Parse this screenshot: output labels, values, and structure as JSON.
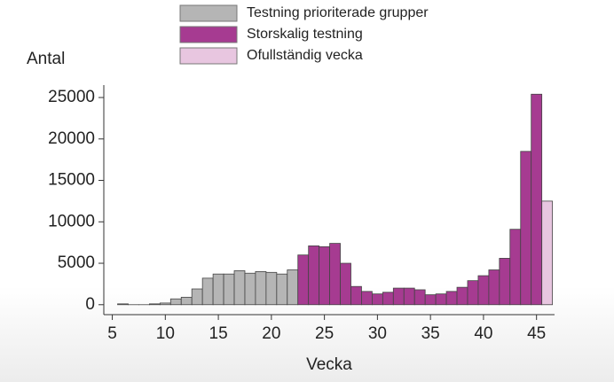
{
  "chart_data": {
    "type": "bar",
    "ylabel": "Antal",
    "xlabel": "Vecka",
    "series": [
      {
        "name": "Testning prioriterade grupper",
        "color": "#b5b5b5",
        "x": [
          6,
          7,
          8,
          9,
          10,
          11,
          12,
          13,
          14,
          15,
          16,
          17,
          18,
          19,
          20,
          21,
          22
        ],
        "values": [
          100,
          0,
          0,
          100,
          200,
          700,
          900,
          1900,
          3200,
          3700,
          3700,
          4100,
          3800,
          4000,
          3900,
          3700,
          4200
        ]
      },
      {
        "name": "Storskalig testning",
        "color": "#a63b91",
        "x": [
          23,
          24,
          25,
          26,
          27,
          28,
          29,
          30,
          31,
          32,
          33,
          34,
          35,
          36,
          37,
          38,
          39,
          40,
          41,
          42,
          43,
          44,
          45
        ],
        "values": [
          6000,
          7100,
          7000,
          7400,
          5000,
          2200,
          1600,
          1300,
          1500,
          2000,
          2000,
          1800,
          1200,
          1300,
          1600,
          2100,
          2900,
          3500,
          4200,
          5600,
          9100,
          18500,
          25400
        ]
      },
      {
        "name": "Ofullständig vecka",
        "color": "#e8c6e0",
        "x": [
          46
        ],
        "values": [
          12500
        ]
      }
    ],
    "xlim": [
      4.2,
      46.7
    ],
    "xticks": [
      5,
      10,
      15,
      20,
      25,
      30,
      35,
      40,
      45
    ],
    "ylim": [
      -1200,
      26500
    ],
    "yticks": [
      0,
      5000,
      10000,
      15000,
      20000,
      25000
    ]
  }
}
